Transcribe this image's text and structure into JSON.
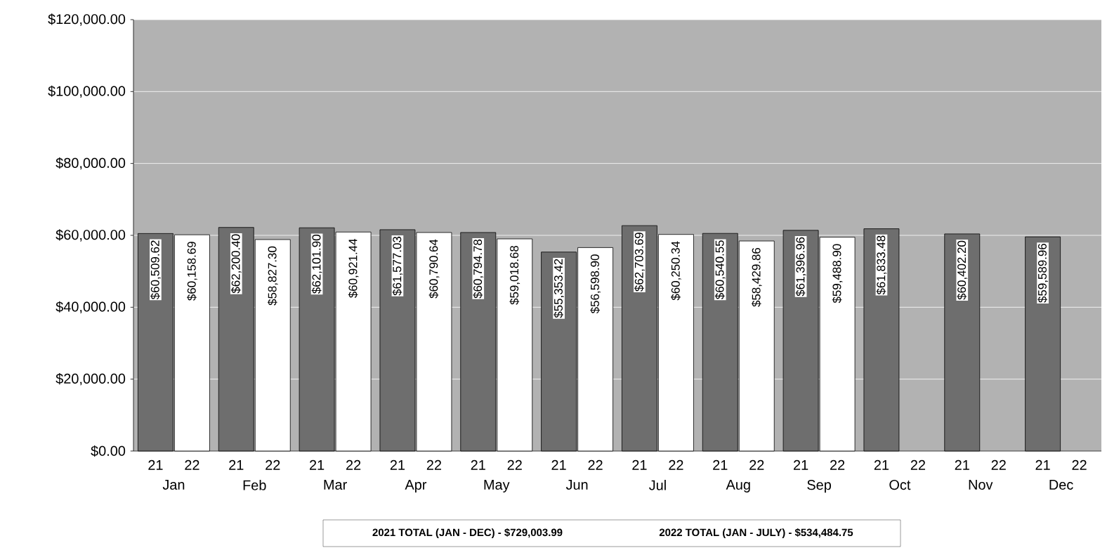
{
  "chart_data": {
    "type": "bar",
    "categories": [
      "Jan",
      "Feb",
      "Mar",
      "Apr",
      "May",
      "Jun",
      "Jul",
      "Aug",
      "Sep",
      "Oct",
      "Nov",
      "Dec"
    ],
    "series": [
      {
        "name": "21",
        "color": "#6e6e6e",
        "values": [
          60509.62,
          62200.4,
          62101.9,
          61577.03,
          60794.78,
          55353.42,
          62703.69,
          60540.55,
          61396.96,
          61833.48,
          60402.2,
          59589.96
        ],
        "value_labels": [
          "$60,509.62",
          "$62,200.40",
          "$62,101.90",
          "$61,577.03",
          "$60,794.78",
          "$55,353.42",
          "$62,703.69",
          "$60,540.55",
          "$61,396.96",
          "$61,833.48",
          "$60,402.20",
          "$59,589.96"
        ]
      },
      {
        "name": "22",
        "color": "#ffffff",
        "values": [
          60158.69,
          58827.3,
          60921.44,
          60790.64,
          59018.68,
          56598.9,
          60250.34,
          58429.86,
          59488.9,
          null,
          null,
          null
        ],
        "value_labels": [
          "$60,158.69",
          "$58,827.30",
          "$60,921.44",
          "$60,790.64",
          "$59,018.68",
          "$56,598.90",
          "$60,250.34",
          "$58,429.86",
          "$59,488.90",
          null,
          null,
          null
        ]
      }
    ],
    "ylim": [
      0,
      120000
    ],
    "yticks": [
      {
        "value": 0,
        "label": "$0.00"
      },
      {
        "value": 20000,
        "label": "$20,000.00"
      },
      {
        "value": 40000,
        "label": "$40,000.00"
      },
      {
        "value": 60000,
        "label": "$60,000.00"
      },
      {
        "value": 80000,
        "label": "$80,000.00"
      },
      {
        "value": 100000,
        "label": "$100,000.00"
      },
      {
        "value": 120000,
        "label": "$120,000.00"
      }
    ],
    "grid": "y",
    "annotations": [
      "2021 TOTAL (JAN - DEC) - $729,003.99",
      "2022 TOTAL (JAN - JULY) - $534,484.75"
    ]
  }
}
